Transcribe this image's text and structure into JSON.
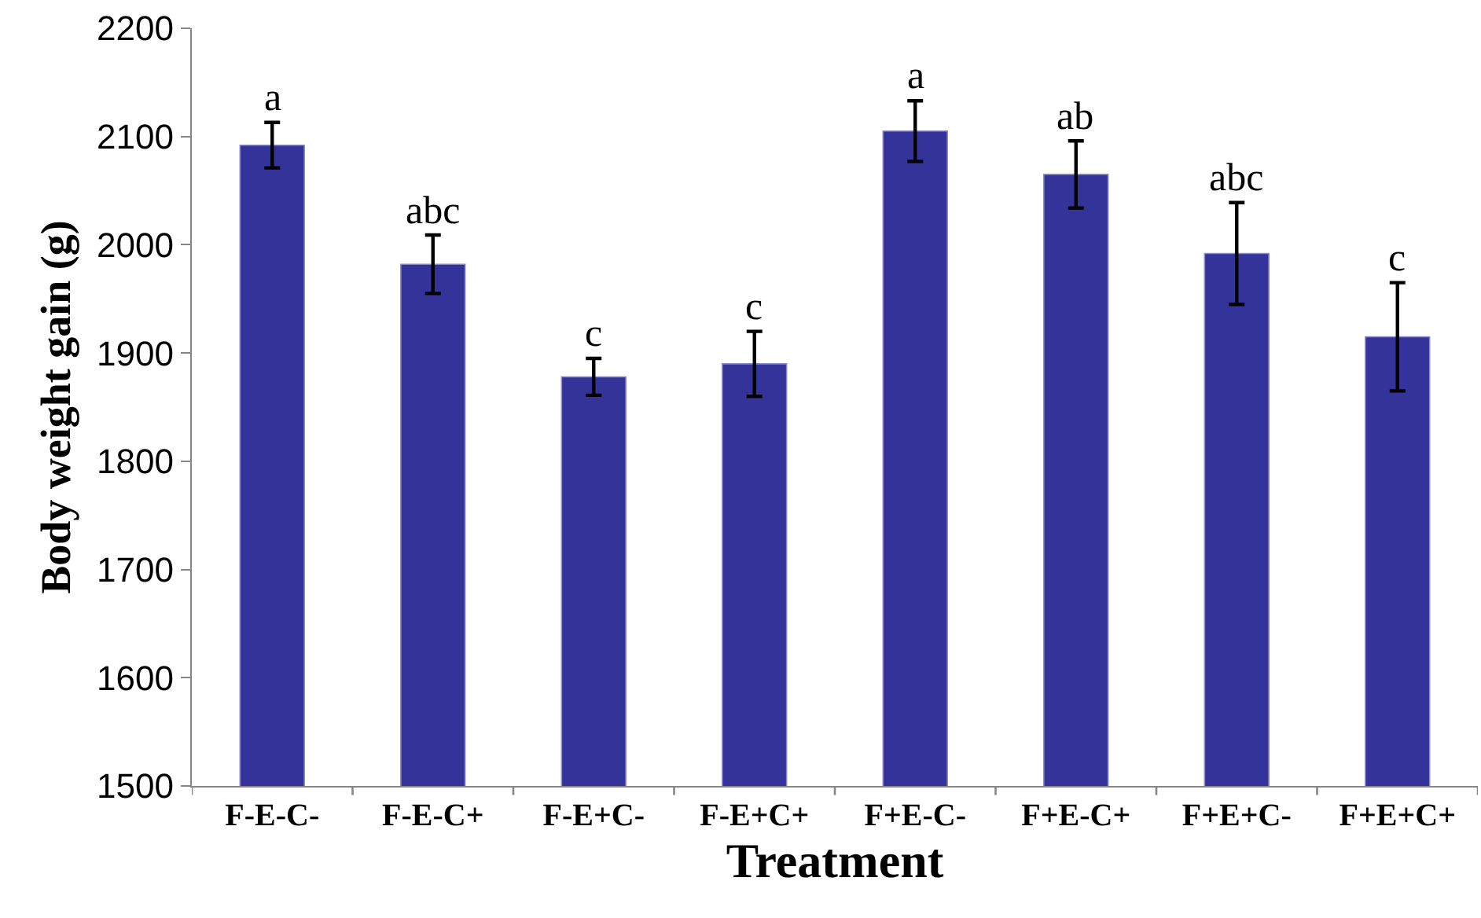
{
  "chart_data": {
    "type": "bar",
    "xlabel": "Treatment",
    "ylabel": "Body weight gain (g)",
    "categories": [
      "F-E-C-",
      "F-E-C+",
      "F-E+C-",
      "F-E+C+",
      "F+E-C-",
      "F+E-C+",
      "F+E+C-",
      "F+E+C+"
    ],
    "values": [
      2092,
      1982,
      1878,
      1890,
      2105,
      2065,
      1992,
      1915
    ],
    "errors": [
      21,
      27,
      17,
      30,
      28,
      31,
      47,
      50
    ],
    "color": "#333399",
    "ylim": [
      1500,
      2200
    ],
    "yticks": [
      1500,
      1600,
      1700,
      1800,
      1900,
      2000,
      2100,
      2200
    ],
    "annotations": [
      {
        "text": "a",
        "x": "F-E-C-",
        "y": 2113
      },
      {
        "text": "abc",
        "x": "F-E-C+",
        "y": 2009
      },
      {
        "text": "c",
        "x": "F-E+C-",
        "y": 1895
      },
      {
        "text": "c",
        "x": "F-E+C+",
        "y": 1920
      },
      {
        "text": "a",
        "x": "F+E-C-",
        "y": 2133
      },
      {
        "text": "ab",
        "x": "F+E-C+",
        "y": 2096
      },
      {
        "text": "abc",
        "x": "F+E+C-",
        "y": 2039
      },
      {
        "text": "c",
        "x": "F+E+C+",
        "y": 1965
      }
    ]
  }
}
